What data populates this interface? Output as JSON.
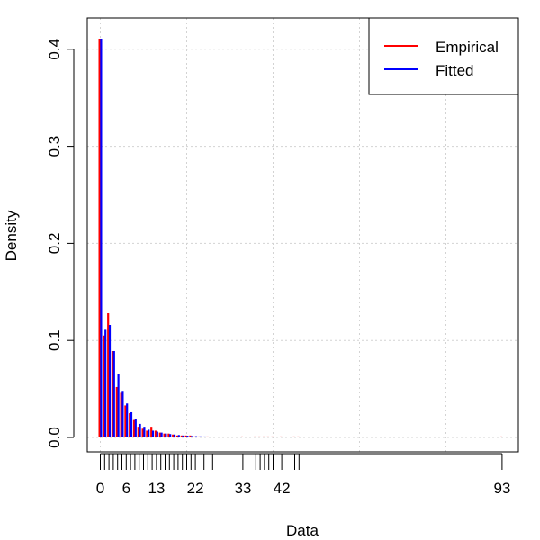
{
  "chart_data": {
    "type": "bar",
    "xlabel": "Data",
    "ylabel": "Density",
    "xlim": [
      -2,
      95
    ],
    "ylim": [
      0,
      0.42
    ],
    "grid": true,
    "legend_position": "top-right",
    "x_tick_labels": [
      {
        "value": 0,
        "label": "0"
      },
      {
        "value": 6,
        "label": "6"
      },
      {
        "value": 13,
        "label": "13"
      },
      {
        "value": 22,
        "label": "22"
      },
      {
        "value": 33,
        "label": "33"
      },
      {
        "value": 42,
        "label": "42"
      },
      {
        "value": 93,
        "label": "93"
      }
    ],
    "rug_ticks": [
      0,
      1,
      2,
      3,
      4,
      5,
      6,
      7,
      8,
      9,
      10,
      11,
      12,
      13,
      14,
      15,
      16,
      17,
      18,
      19,
      20,
      21,
      22,
      24,
      26,
      33,
      36,
      37,
      38,
      39,
      40,
      42,
      45,
      46,
      93
    ],
    "y_ticks": [
      {
        "value": 0.0,
        "label": "0.0"
      },
      {
        "value": 0.1,
        "label": "0.1"
      },
      {
        "value": 0.2,
        "label": "0.2"
      },
      {
        "value": 0.3,
        "label": "0.3"
      },
      {
        "value": 0.4,
        "label": "0.4"
      }
    ],
    "x": [
      0,
      1,
      2,
      3,
      4,
      5,
      6,
      7,
      8,
      9,
      10,
      11,
      12,
      13,
      14,
      15,
      16,
      17,
      18,
      19,
      20,
      21,
      22,
      23,
      24,
      25,
      26,
      27,
      28,
      29,
      30,
      31,
      32,
      33,
      34,
      35,
      36,
      37,
      38,
      39,
      40,
      41,
      42,
      43,
      44,
      45,
      46,
      47,
      48,
      49,
      50,
      51,
      52,
      53,
      54,
      55,
      56,
      57,
      58,
      59,
      60,
      61,
      62,
      63,
      64,
      65,
      66,
      67,
      68,
      69,
      70,
      71,
      72,
      73,
      74,
      75,
      76,
      77,
      78,
      79,
      80,
      81,
      82,
      83,
      84,
      85,
      86,
      87,
      88,
      89,
      90,
      91,
      92,
      93
    ],
    "series": [
      {
        "name": "Empirical",
        "color": "#ff0000",
        "values": [
          0.411,
          0.105,
          0.128,
          0.089,
          0.052,
          0.046,
          0.033,
          0.025,
          0.018,
          0.011,
          0.009,
          0.007,
          0.011,
          0.007,
          0.005,
          0.004,
          0.004,
          0.003,
          0.002,
          0.002,
          0.002,
          0.002,
          0.001,
          0.001,
          0.0006,
          0.001,
          0.0006,
          0,
          0,
          0,
          0,
          0,
          0,
          0.001,
          0,
          0,
          0.001,
          0.001,
          0.001,
          0.001,
          0.001,
          0,
          0.001,
          0,
          0,
          0.001,
          0.001,
          0,
          0,
          0,
          0,
          0,
          0,
          0,
          0,
          0,
          0,
          0,
          0,
          0,
          0,
          0,
          0,
          0,
          0,
          0,
          0,
          0,
          0,
          0,
          0,
          0,
          0,
          0,
          0,
          0,
          0,
          0,
          0,
          0,
          0,
          0,
          0,
          0,
          0,
          0,
          0,
          0,
          0,
          0,
          0,
          0,
          0,
          0.001
        ]
      },
      {
        "name": "Fitted",
        "color": "#0000ff",
        "values": [
          0.411,
          0.111,
          0.116,
          0.089,
          0.065,
          0.048,
          0.035,
          0.026,
          0.019,
          0.014,
          0.011,
          0.008,
          0.007,
          0.006,
          0.005,
          0.004,
          0.0035,
          0.003,
          0.0025,
          0.002,
          0.0018,
          0.0015,
          0.0013,
          0.0011,
          0.001,
          0.0009,
          0.0008,
          0.0007,
          0.0006,
          0.0005,
          0.0005,
          0.0004,
          0.0004,
          0.0003,
          0.0003,
          0.0003,
          0.0003,
          0.0002,
          0.0002,
          0.0002,
          0.0002,
          0.0002,
          0.0002,
          0.0001,
          0.0001,
          0.0001,
          0.0001,
          0.0001,
          0.0001,
          0.0001,
          0.0001,
          0.0001,
          0.0001,
          0.0001,
          0.0001,
          0.0001,
          0.0001,
          0.0001,
          0.0001,
          0.0001,
          0.0001,
          0.0001,
          0.0001,
          0.0001,
          0.0001,
          0.0001,
          0.0001,
          0.0001,
          0.0001,
          0.0001,
          0.0001,
          0.0001,
          0.0001,
          0.0001,
          0.0001,
          0.0001,
          0.0001,
          0.0001,
          0.0001,
          0.0001,
          0.0001,
          0.0001,
          0.0001,
          0.0001,
          0.0001,
          0.0001,
          0.0001,
          0.0001,
          0.0001,
          0.0001,
          0.0001,
          0.0001,
          0.0001,
          0.0001
        ]
      }
    ]
  }
}
